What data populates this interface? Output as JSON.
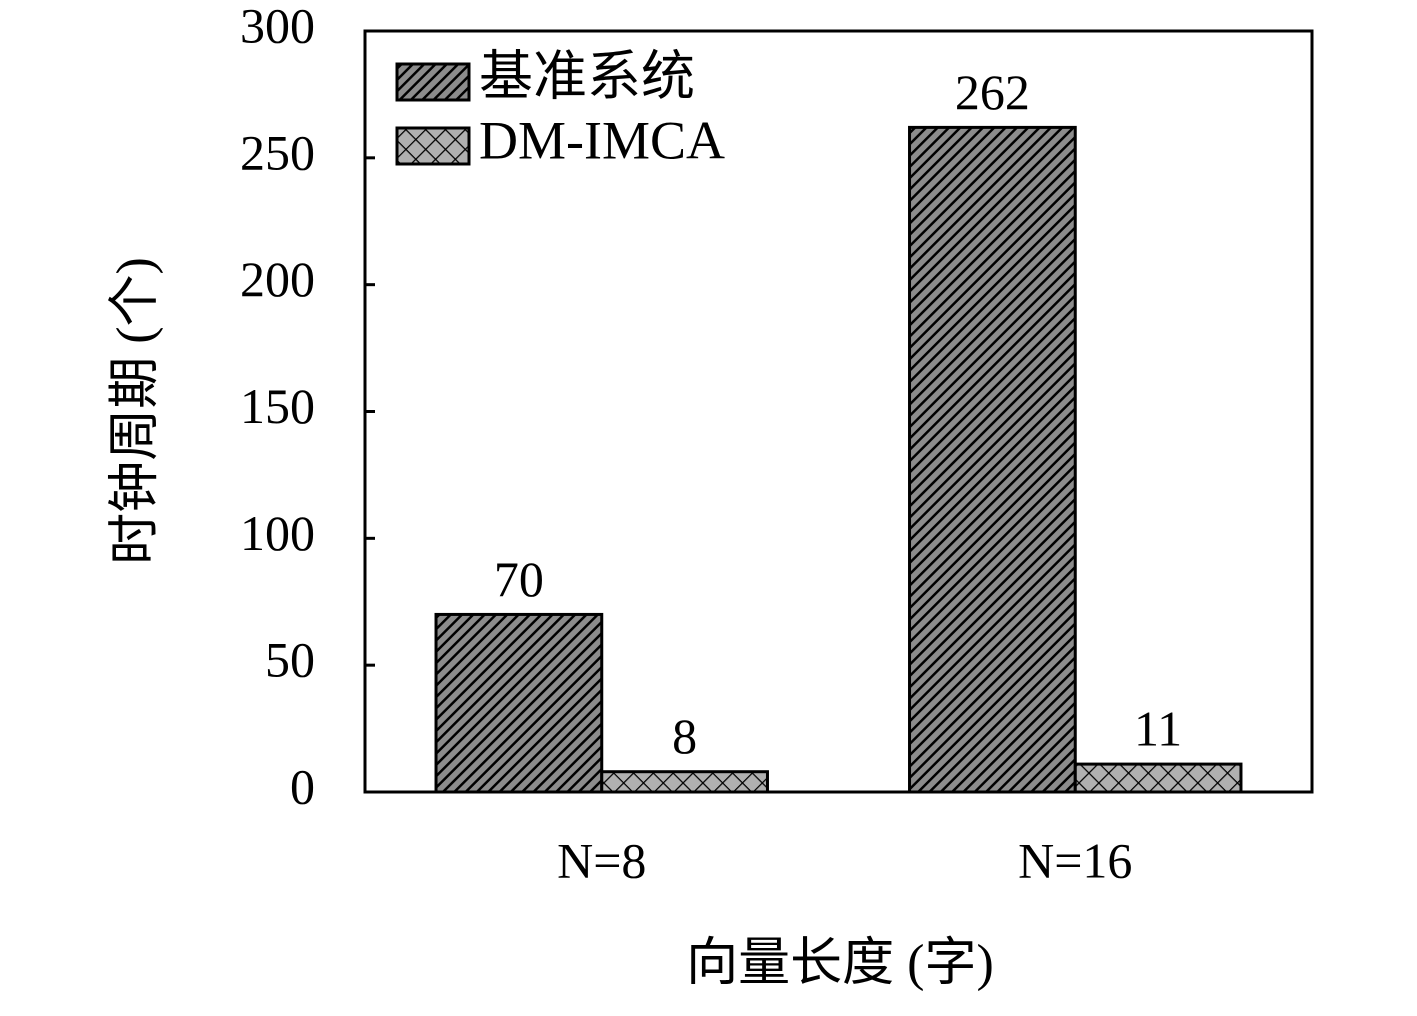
{
  "chart_data": {
    "type": "bar",
    "x_label": "向量长度 (字)",
    "y_label": "时钟周期 (个)",
    "categories": [
      "N=8",
      "N=16"
    ],
    "series": [
      {
        "name": "基准系统",
        "color": "#8c8c8c",
        "hatch": "diagonal",
        "values": [
          70,
          262
        ]
      },
      {
        "name": "DM-IMCA",
        "color": "#b0b0b0",
        "hatch": "cross",
        "values": [
          8,
          11
        ]
      }
    ],
    "ylim": [
      0,
      300
    ],
    "yticks": [
      0,
      50,
      100,
      150,
      200,
      250,
      300
    ],
    "legend": "upper-left",
    "grid": false
  }
}
